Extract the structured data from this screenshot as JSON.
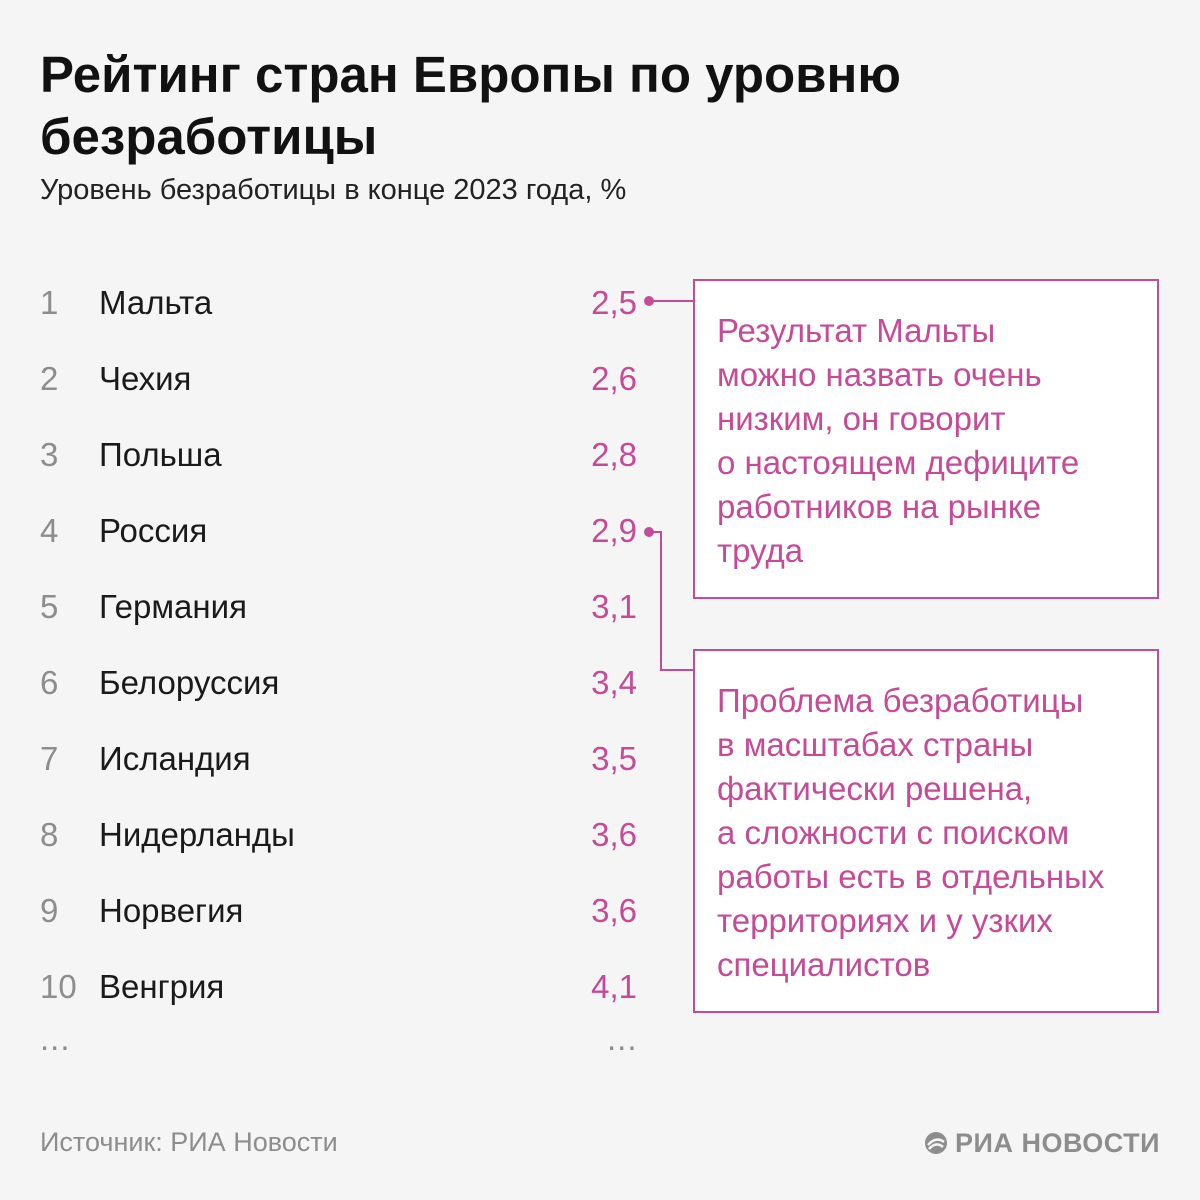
{
  "title": "Рейтинг стран Европы по уровню безработицы",
  "subtitle": "Уровень безработицы в конце 2023 года, %",
  "chart_data": {
    "type": "table",
    "title": "Рейтинг стран Европы по уровню безработицы",
    "subtitle": "Уровень безработицы в конце 2023 года, %",
    "rows": [
      {
        "rank": "1",
        "country": "Мальта",
        "value": "2,5"
      },
      {
        "rank": "2",
        "country": "Чехия",
        "value": "2,6"
      },
      {
        "rank": "3",
        "country": "Польша",
        "value": "2,8"
      },
      {
        "rank": "4",
        "country": "Россия",
        "value": "2,9"
      },
      {
        "rank": "5",
        "country": "Германия",
        "value": "3,1"
      },
      {
        "rank": "6",
        "country": "Белоруссия",
        "value": "3,4"
      },
      {
        "rank": "7",
        "country": "Исландия",
        "value": "3,5"
      },
      {
        "rank": "8",
        "country": "Нидерланды",
        "value": "3,6"
      },
      {
        "rank": "9",
        "country": "Норвегия",
        "value": "3,6"
      },
      {
        "rank": "10",
        "country": "Венгрия",
        "value": "4,1"
      }
    ],
    "ellipsis": "..."
  },
  "callouts": [
    {
      "target": "Мальта",
      "lines": [
        "Результат Мальты",
        "можно назвать очень",
        "низким, он говорит",
        "о настоящем дефиците",
        "работников на рынке",
        "труда"
      ]
    },
    {
      "target": "Россия",
      "lines": [
        "Проблема безработицы",
        "в масштабах страны",
        "фактически решена,",
        "а сложности с поиском",
        "работы есть в отдельных",
        "территориях и у узких",
        "специалистов"
      ]
    }
  ],
  "source": "Источник: РИА Новости",
  "logo": "РИА НОВОСТИ",
  "colors": {
    "accent": "#c64a96",
    "muted": "#8d8d8d",
    "background": "#f5f5f5"
  }
}
